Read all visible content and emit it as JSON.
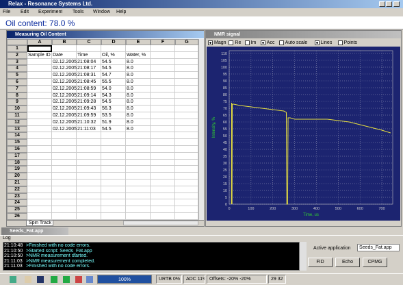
{
  "window": {
    "title": "Relax - Resonance Systems Ltd."
  },
  "menu": [
    "File",
    "Edit",
    "Experiment",
    "Tools",
    "Window",
    "Help"
  ],
  "oil_content": "Oil content: 78.0 %",
  "sheet": {
    "title": "Measuring Oil Content",
    "columns": [
      "A",
      "B",
      "C",
      "D",
      "E",
      "F",
      "G"
    ],
    "row_numbers": [
      1,
      2,
      3,
      4,
      5,
      6,
      7,
      8,
      9,
      10,
      11,
      12,
      13,
      14,
      15,
      16,
      17,
      18,
      19,
      20,
      21,
      22,
      23,
      24,
      25,
      26
    ],
    "header": [
      "Sample ID",
      "Date",
      "Time",
      "Oil, %",
      "Water, %"
    ],
    "rows": [
      {
        "date": "02.12.2005",
        "time": "21:08:04",
        "oil": "54.5",
        "water": "8.0"
      },
      {
        "date": "02.12.2005",
        "time": "21:08:17",
        "oil": "54.5",
        "water": "8.0"
      },
      {
        "date": "02.12.2005",
        "time": "21:08:31",
        "oil": "54.7",
        "water": "8.0"
      },
      {
        "date": "02.12.2005",
        "time": "21:08:45",
        "oil": "55.5",
        "water": "8.0"
      },
      {
        "date": "02.12.2005",
        "time": "21:08:59",
        "oil": "54.0",
        "water": "8.0"
      },
      {
        "date": "02.12.2005",
        "time": "21:09:14",
        "oil": "54.3",
        "water": "8.0"
      },
      {
        "date": "02.12.2005",
        "time": "21:09:28",
        "oil": "54.5",
        "water": "8.0"
      },
      {
        "date": "02.12.2005",
        "time": "21:09:43",
        "oil": "56.3",
        "water": "8.0"
      },
      {
        "date": "02.12.2005",
        "time": "21:09:59",
        "oil": "53.5",
        "water": "8.0"
      },
      {
        "date": "02.12.2005",
        "time": "21:10:32",
        "oil": "51.9",
        "water": "8.0"
      },
      {
        "date": "02.12.2005",
        "time": "21:11:03",
        "oil": "54.5",
        "water": "8.0"
      }
    ],
    "tab": "Spin Track"
  },
  "nmr": {
    "title": "NMR signal",
    "options": [
      {
        "label": "Magn",
        "checked": true
      },
      {
        "label": "Re",
        "checked": false
      },
      {
        "label": "Im",
        "checked": false
      },
      {
        "label": "Acc",
        "checked": true
      },
      {
        "label": "Auto scale",
        "checked": false
      },
      {
        "label": "Lines",
        "checked": true
      },
      {
        "label": "Points",
        "checked": false
      }
    ]
  },
  "chart_data": {
    "type": "line",
    "xlabel": "Time, us",
    "ylabel": "Intensity, %",
    "x": [
      10,
      11,
      13,
      14,
      20,
      50,
      100,
      150,
      200,
      250,
      262,
      264,
      268,
      270,
      280,
      300,
      350,
      400,
      450,
      500,
      550,
      600,
      650,
      700,
      740
    ],
    "series": [
      {
        "color": "#e8e040",
        "values": [
          0,
          74,
          0,
          73,
          73,
          72,
          71,
          70,
          69,
          68,
          67,
          0,
          0,
          63,
          63,
          62,
          62,
          62,
          62,
          61,
          60,
          58,
          56,
          54,
          52
        ]
      }
    ],
    "xlim": [
      0,
      750
    ],
    "ylim": [
      0,
      112
    ],
    "xticks": [
      0,
      100,
      200,
      300,
      400,
      500,
      600,
      700
    ],
    "yticks": [
      0,
      5,
      10,
      15,
      20,
      25,
      30,
      35,
      40,
      45,
      50,
      55,
      60,
      65,
      70,
      75,
      80,
      85,
      90,
      95,
      100,
      105,
      110
    ],
    "grid": true
  },
  "log": {
    "title": "Seeds_Fat.app",
    "label": "Log",
    "entries": [
      {
        "time": "21:10:48",
        "message": ">Finished with no code errors."
      },
      {
        "time": "21:10:50",
        "message": ">Started script: Seeds_Fat.app"
      },
      {
        "time": "21:10:50",
        "message": ">NMR measurement started."
      },
      {
        "time": "21:11:03",
        "message": ">NMR measurement completed."
      },
      {
        "time": "21:11:03",
        "message": ">Finished with no code errors."
      }
    ]
  },
  "panel": {
    "label": "Active application",
    "selected": "Seeds_Fat.app",
    "buttons": [
      "FID",
      "Echo",
      "CPMG"
    ]
  },
  "status": {
    "progress": "100%",
    "items": [
      "URTB 0%",
      "ADC 11%",
      "Offsets: -20% -20%",
      "29 32"
    ]
  }
}
